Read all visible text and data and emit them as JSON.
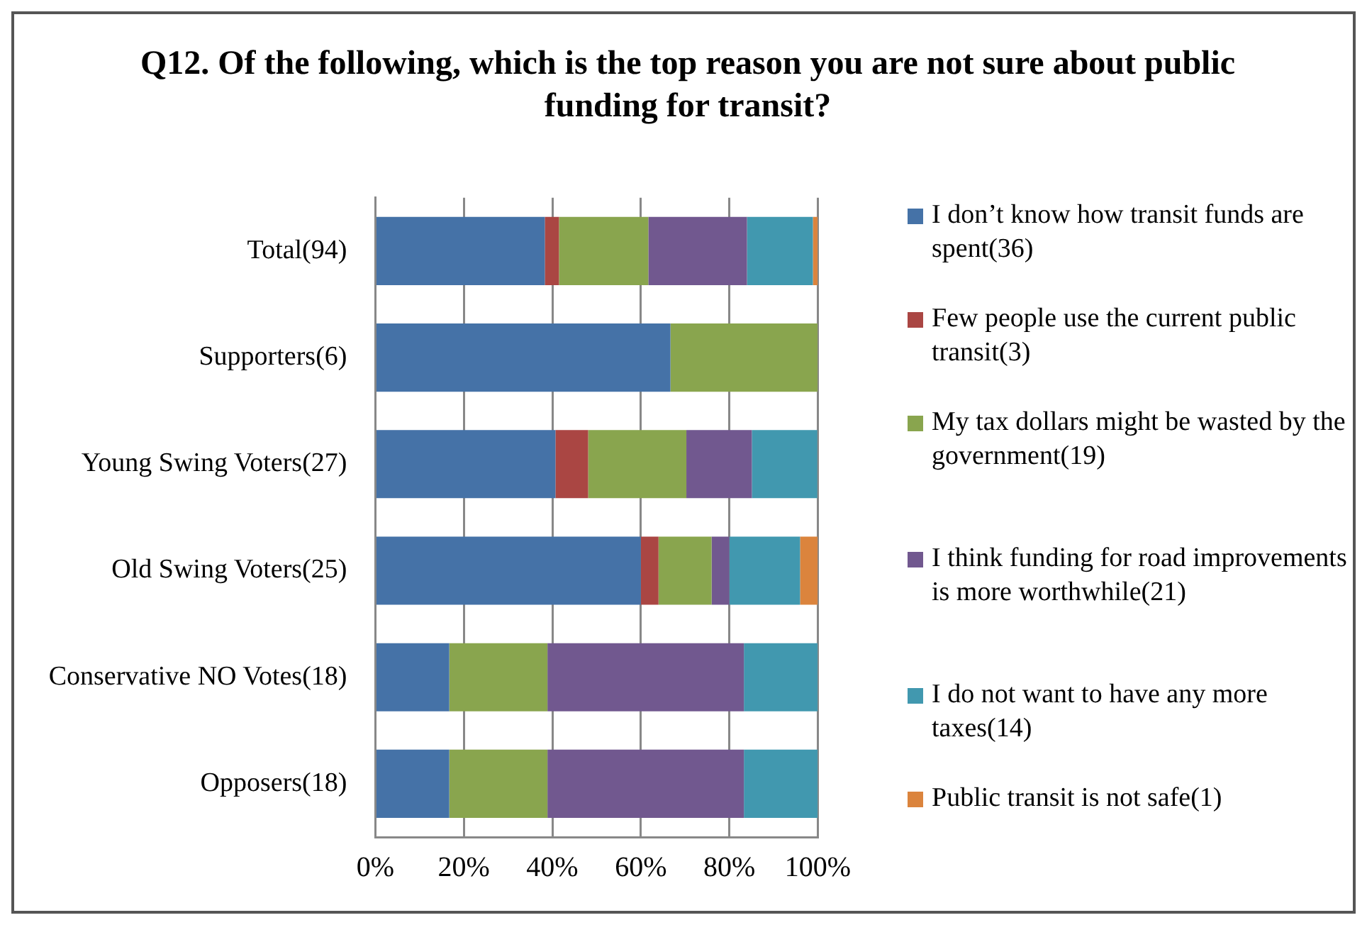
{
  "chart_data": {
    "type": "bar",
    "orientation": "horizontal",
    "stacked": true,
    "title": "Q12. Of the following, which is the top reason you are not sure about public funding for transit?",
    "categories": [
      "Total(94)",
      "Supporters(6)",
      "Young Swing Voters(27)",
      "Old Swing Voters(25)",
      "Conservative NO Votes(18)",
      "Opposers(18)"
    ],
    "series": [
      {
        "name": "I don’t know how transit funds are spent(36)",
        "color": "#4572a7",
        "values": [
          38.3,
          66.7,
          40.7,
          60,
          16.7,
          16.7
        ]
      },
      {
        "name": "Few people use the current public transit(3)",
        "color": "#aa4643",
        "values": [
          3.2,
          0,
          7.4,
          4,
          0,
          0
        ]
      },
      {
        "name": "My tax dollars might be wasted by the government(19)",
        "color": "#89a54e",
        "values": [
          20.2,
          33.3,
          22.2,
          12,
          22.2,
          22.2
        ]
      },
      {
        "name": "I think funding for road improvements is more worthwhile(21)",
        "color": "#71588f",
        "values": [
          22.3,
          0,
          14.8,
          4,
          44.4,
          44.4
        ]
      },
      {
        "name": "I do not want to have any more taxes(14)",
        "color": "#4198af",
        "values": [
          14.9,
          0,
          14.8,
          16,
          16.7,
          16.7
        ]
      },
      {
        "name": "Public transit is not safe(1)",
        "color": "#db843d",
        "values": [
          1.1,
          0,
          0,
          4,
          0,
          0
        ]
      }
    ],
    "xlim": [
      0,
      100
    ],
    "xticks": [
      {
        "value": 0,
        "label": "0%"
      },
      {
        "value": 20,
        "label": "20%"
      },
      {
        "value": 40,
        "label": "40%"
      },
      {
        "value": 60,
        "label": "60%"
      },
      {
        "value": 80,
        "label": "80%"
      },
      {
        "value": 100,
        "label": "100%"
      }
    ],
    "grid": "x",
    "legend": "right"
  }
}
